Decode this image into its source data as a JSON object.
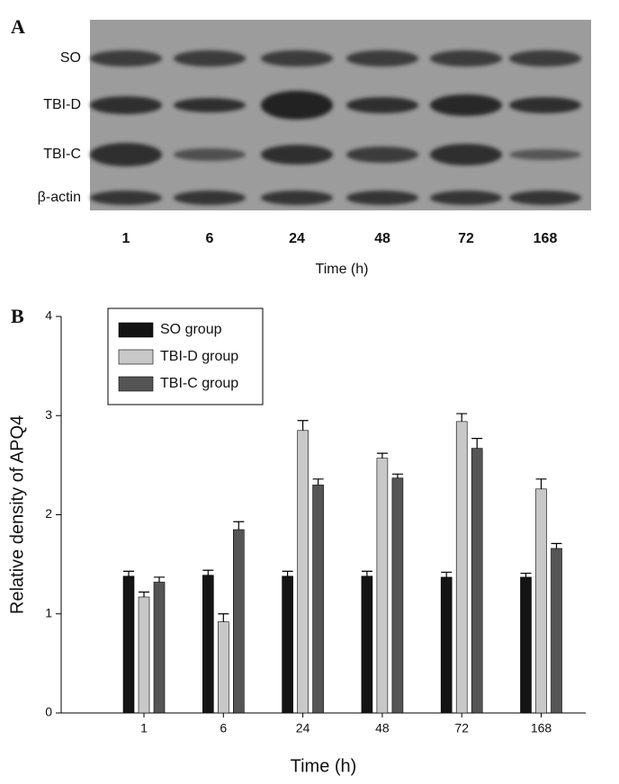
{
  "panel_a": {
    "label": "A",
    "rows": [
      "SO",
      "TBI-D",
      "TBI-C",
      "β-actin"
    ],
    "lanes": [
      "1",
      "6",
      "24",
      "48",
      "72",
      "168"
    ],
    "xlabel": "Time (h)"
  },
  "chart_data": {
    "type": "bar",
    "panel_label": "B",
    "xlabel": "Time (h)",
    "ylabel": "Relative density of APQ4",
    "categories": [
      "1",
      "6",
      "24",
      "48",
      "72",
      "168"
    ],
    "series": [
      {
        "name": "SO group",
        "color": "#141414",
        "values": [
          1.38,
          1.39,
          1.38,
          1.38,
          1.37,
          1.37
        ],
        "errors": [
          0.05,
          0.05,
          0.05,
          0.05,
          0.05,
          0.04
        ]
      },
      {
        "name": "TBI-D group",
        "color": "#c8c8c8",
        "values": [
          1.17,
          0.92,
          2.85,
          2.57,
          2.94,
          2.26
        ],
        "errors": [
          0.05,
          0.08,
          0.1,
          0.05,
          0.08,
          0.1
        ]
      },
      {
        "name": "TBI-C group",
        "color": "#555555",
        "values": [
          1.32,
          1.85,
          2.3,
          2.37,
          2.67,
          1.66
        ],
        "errors": [
          0.05,
          0.08,
          0.06,
          0.04,
          0.1,
          0.05
        ]
      }
    ],
    "ylim": [
      0,
      4
    ],
    "yticks": [
      0,
      1,
      2,
      3,
      4
    ],
    "grid": false,
    "legend": "upper left"
  }
}
